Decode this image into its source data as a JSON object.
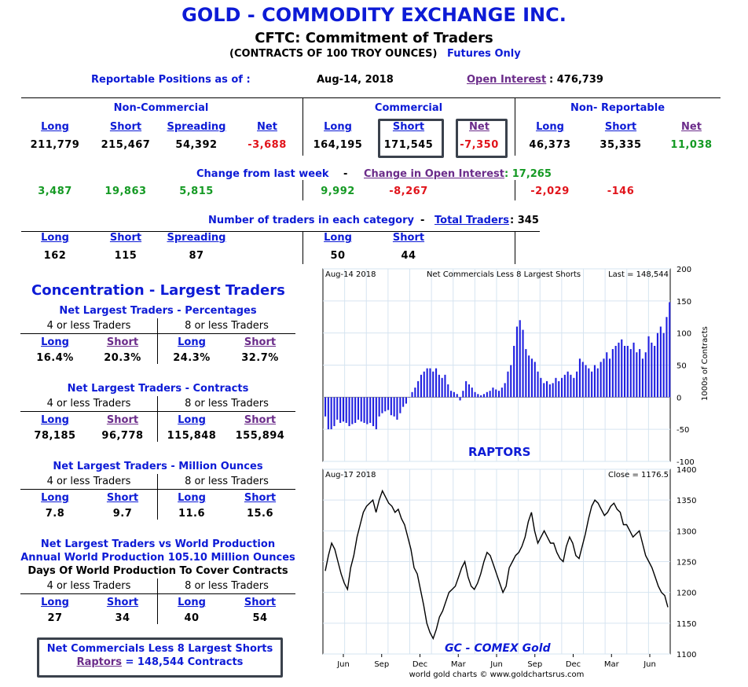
{
  "header": {
    "title": "GOLD - COMMODITY EXCHANGE INC.",
    "subtitle": "CFTC: Commitment of Traders",
    "contracts_note": "(CONTRACTS OF 100 TROY OUNCES)",
    "futures_only": "Futures Only"
  },
  "positions": {
    "label": "Reportable Positions as of :",
    "date": "Aug-14, 2018",
    "oi_label": "Open Interest",
    "oi_value": ": 476,739"
  },
  "groups": {
    "noncommercial": "Non-Commercial",
    "commercial": "Commercial",
    "nonreportable": "Non- Reportable"
  },
  "cols": {
    "long": "Long",
    "short": "Short",
    "spreading": "Spreading",
    "net": "Net"
  },
  "values": {
    "nc_long": "211,779",
    "nc_short": "215,467",
    "nc_spread": "54,392",
    "nc_net": "-3,688",
    "c_long": "164,195",
    "c_short": "171,545",
    "c_net": "-7,350",
    "nr_long": "46,373",
    "nr_short": "35,335",
    "nr_net": "11,038"
  },
  "change": {
    "label": "Change from last week",
    "dash": "-",
    "oi_label": "Change in Open Interest",
    "oi_value": ": 17,265",
    "nc_long": "3,487",
    "nc_short": "19,863",
    "nc_spread": "5,815",
    "c_long": "9,992",
    "c_short": "-8,267",
    "nr_long": "-2,029",
    "nr_short": "-146"
  },
  "traders": {
    "label": "Number of traders in each category",
    "dash": "-",
    "total_label": "Total Traders",
    "total_value": ": 345",
    "nc_long": "162",
    "nc_short": "115",
    "nc_spread": "87",
    "c_long": "50",
    "c_short": "44"
  },
  "concentration": {
    "title": "Concentration - Largest Traders",
    "four": "4 or less Traders",
    "eight": "8 or less Traders",
    "pct": {
      "title": "Net Largest Traders - Percentages",
      "v": [
        "16.4%",
        "20.3%",
        "24.3%",
        "32.7%"
      ]
    },
    "contracts": {
      "title": "Net Largest Traders - Contracts",
      "v": [
        "78,185",
        "96,778",
        "115,848",
        "155,894"
      ]
    },
    "ounces": {
      "title": "Net Largest Traders - Million Ounces",
      "v": [
        "7.8",
        "9.7",
        "11.6",
        "15.6"
      ]
    },
    "world": {
      "title1": "Net Largest Traders vs World Production",
      "title2": "Annual World Production 105.10 Million Ounces",
      "title3": "Days Of World Production To Cover Contracts",
      "v": [
        "27",
        "34",
        "40",
        "54"
      ]
    }
  },
  "raptors_box": {
    "line1": "Net Commercials Less 8 Largest Shorts",
    "link": "Raptors",
    "rest": "= 148,544 Contracts"
  },
  "colors": {
    "title": "#0d1bd6",
    "link": "#0d1bd6",
    "visited": "#6b2c8a",
    "negative": "#e1141b",
    "positive": "#159a24",
    "bars": "#2020e0"
  },
  "chart_data": [
    {
      "type": "bar",
      "title": "Net Commercials Less 8 Largest Shorts",
      "date_label": "Aug-14  2018",
      "last_label": "Last = 148,544",
      "name_label": "RAPTORS",
      "ylabel": "1000s of Contracts",
      "ylim": [
        -100,
        200
      ],
      "yticks": [
        -100,
        -50,
        0,
        50,
        100,
        150,
        200
      ],
      "grid": true,
      "values": [
        -30,
        -50,
        -50,
        -45,
        -35,
        -40,
        -38,
        -40,
        -45,
        -42,
        -40,
        -35,
        -38,
        -40,
        -42,
        -40,
        -45,
        -50,
        -30,
        -25,
        -22,
        -20,
        -28,
        -30,
        -35,
        -25,
        -15,
        -10,
        0,
        8,
        15,
        25,
        35,
        40,
        45,
        45,
        40,
        45,
        35,
        30,
        35,
        20,
        10,
        8,
        5,
        -5,
        10,
        25,
        20,
        15,
        8,
        5,
        3,
        5,
        8,
        10,
        15,
        12,
        10,
        15,
        22,
        40,
        50,
        80,
        110,
        120,
        105,
        75,
        65,
        60,
        55,
        40,
        30,
        22,
        25,
        20,
        22,
        30,
        25,
        30,
        35,
        40,
        35,
        30,
        40,
        60,
        55,
        50,
        45,
        40,
        50,
        45,
        55,
        60,
        70,
        60,
        75,
        80,
        85,
        90,
        80,
        80,
        75,
        85,
        70,
        75,
        60,
        70,
        95,
        85,
        80,
        100,
        110,
        100,
        125,
        148
      ]
    },
    {
      "type": "line",
      "title": "GC - COMEX Gold",
      "date_label": "Aug-17  2018",
      "close_label": "Close = 1176.5",
      "ylim": [
        1100,
        1400
      ],
      "yticks": [
        1100,
        1150,
        1200,
        1250,
        1300,
        1350,
        1400
      ],
      "xlabels": [
        "Jun",
        "Sep",
        "Dec",
        "Mar",
        "Jun",
        "Sep",
        "Dec",
        "Mar",
        "Jun"
      ],
      "footer": "world gold charts © www.goldchartsrus.com",
      "grid": true,
      "values": [
        1235,
        1260,
        1280,
        1270,
        1250,
        1230,
        1215,
        1205,
        1240,
        1260,
        1290,
        1310,
        1330,
        1340,
        1345,
        1350,
        1330,
        1350,
        1365,
        1355,
        1345,
        1340,
        1330,
        1335,
        1320,
        1310,
        1290,
        1270,
        1240,
        1230,
        1205,
        1180,
        1150,
        1135,
        1125,
        1140,
        1160,
        1170,
        1185,
        1200,
        1205,
        1210,
        1225,
        1240,
        1250,
        1225,
        1210,
        1205,
        1215,
        1230,
        1250,
        1265,
        1260,
        1245,
        1230,
        1215,
        1200,
        1210,
        1240,
        1250,
        1260,
        1265,
        1275,
        1290,
        1315,
        1330,
        1300,
        1280,
        1290,
        1300,
        1290,
        1280,
        1280,
        1265,
        1255,
        1250,
        1275,
        1290,
        1280,
        1260,
        1255,
        1275,
        1295,
        1320,
        1340,
        1350,
        1345,
        1335,
        1325,
        1330,
        1340,
        1345,
        1335,
        1330,
        1310,
        1310,
        1300,
        1290,
        1295,
        1300,
        1280,
        1260,
        1250,
        1240,
        1225,
        1210,
        1200,
        1195,
        1176
      ]
    }
  ]
}
